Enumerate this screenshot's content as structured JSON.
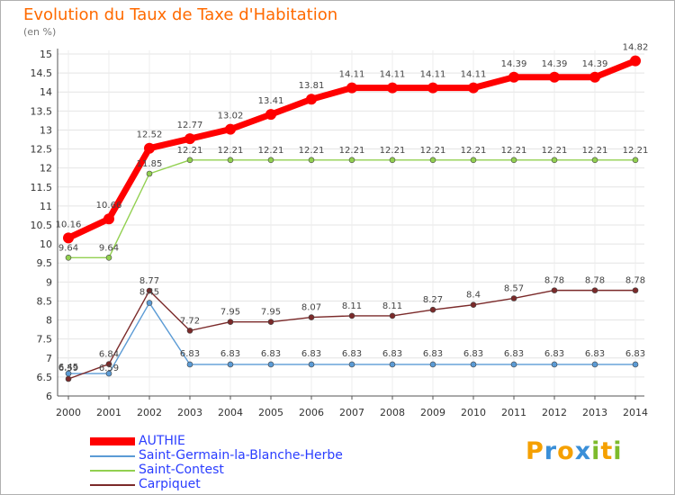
{
  "chart_data": {
    "type": "line",
    "title": "Evolution du Taux de Taxe d'Habitation",
    "ylabel": "(en %)",
    "xlabel": "",
    "categories": [
      "2000",
      "2001",
      "2002",
      "2003",
      "2004",
      "2005",
      "2006",
      "2007",
      "2008",
      "2009",
      "2010",
      "2011",
      "2012",
      "2013",
      "2014"
    ],
    "ylim": [
      6,
      15
    ],
    "yticks": [
      "6",
      "6.5",
      "7",
      "7.5",
      "8",
      "8.5",
      "9",
      "9.5",
      "10",
      "10.5",
      "11",
      "11.5",
      "12",
      "12.5",
      "13",
      "13.5",
      "14",
      "14.5",
      "15"
    ],
    "grid": true,
    "legend_position": "bottom-left",
    "series": [
      {
        "name": "AUTHIE",
        "color": "#ff0000",
        "values": [
          10.16,
          10.66,
          12.52,
          12.77,
          13.02,
          13.41,
          13.81,
          14.11,
          14.11,
          14.11,
          14.11,
          14.39,
          14.39,
          14.39,
          14.82
        ],
        "labels": [
          "10.16",
          "10.66",
          "12.52",
          "12.77",
          "13.02",
          "13.41",
          "13.81",
          "14.11",
          "14.11",
          "14.11",
          "14.11",
          "14.39",
          "14.39",
          "14.39",
          "14.82"
        ]
      },
      {
        "name": "Saint-Germain-la-Blanche-Herbe",
        "color": "#5b9bd5",
        "values": [
          6.59,
          6.59,
          8.45,
          6.83,
          6.83,
          6.83,
          6.83,
          6.83,
          6.83,
          6.83,
          6.83,
          6.83,
          6.83,
          6.83,
          6.83
        ],
        "labels": [
          "6.59",
          "6.59",
          "8.45",
          "6.83",
          "6.83",
          "6.83",
          "6.83",
          "6.83",
          "6.83",
          "6.83",
          "6.83",
          "6.83",
          "6.83",
          "6.83",
          "6.83"
        ]
      },
      {
        "name": "Saint-Contest",
        "color": "#92d050",
        "values": [
          9.64,
          9.64,
          11.85,
          12.21,
          12.21,
          12.21,
          12.21,
          12.21,
          12.21,
          12.21,
          12.21,
          12.21,
          12.21,
          12.21,
          12.21
        ],
        "labels": [
          "9.64",
          "9.64",
          "11.85",
          "12.21",
          "12.21",
          "12.21",
          "12.21",
          "12.21",
          "12.21",
          "12.21",
          "12.21",
          "12.21",
          "12.21",
          "12.21",
          "12.21"
        ]
      },
      {
        "name": "Carpiquet",
        "color": "#7b2a2a",
        "values": [
          6.45,
          6.84,
          8.77,
          7.72,
          7.95,
          7.95,
          8.07,
          8.11,
          8.11,
          8.27,
          8.4,
          8.57,
          8.78,
          8.78,
          8.78
        ],
        "labels": [
          "6.45",
          "6.84",
          "8.77",
          "7.72",
          "7.95",
          "7.95",
          "8.07",
          "8.11",
          "8.11",
          "8.27",
          "8.4",
          "8.57",
          "8.78",
          "8.78",
          "8.78"
        ]
      }
    ]
  },
  "brand": {
    "letters": [
      "P",
      "r",
      "o",
      "x",
      "i",
      "t",
      "i"
    ],
    "colors": [
      "#f5a000",
      "#3a8fd8",
      "#f5a000",
      "#3a8fd8",
      "#7dbb2c",
      "#f5a000",
      "#7dbb2c"
    ]
  }
}
